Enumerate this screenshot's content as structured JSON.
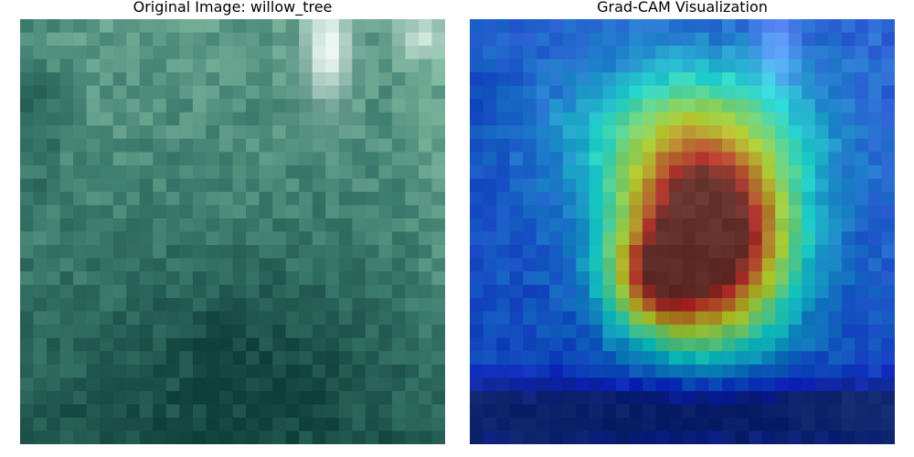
{
  "panels": [
    {
      "title": "Original Image: willow_tree",
      "kind": "photo",
      "palette": {
        "dark": "#0f3f3a",
        "mid": "#3a7a6c",
        "light": "#8cc4aa",
        "sky": "#f2fbf7"
      }
    },
    {
      "title": "Grad-CAM Visualization",
      "kind": "heatmap-overlay",
      "colormap": "jet",
      "peak_color": "#7a1f1a",
      "low_color": "#1a3aa0"
    }
  ]
}
